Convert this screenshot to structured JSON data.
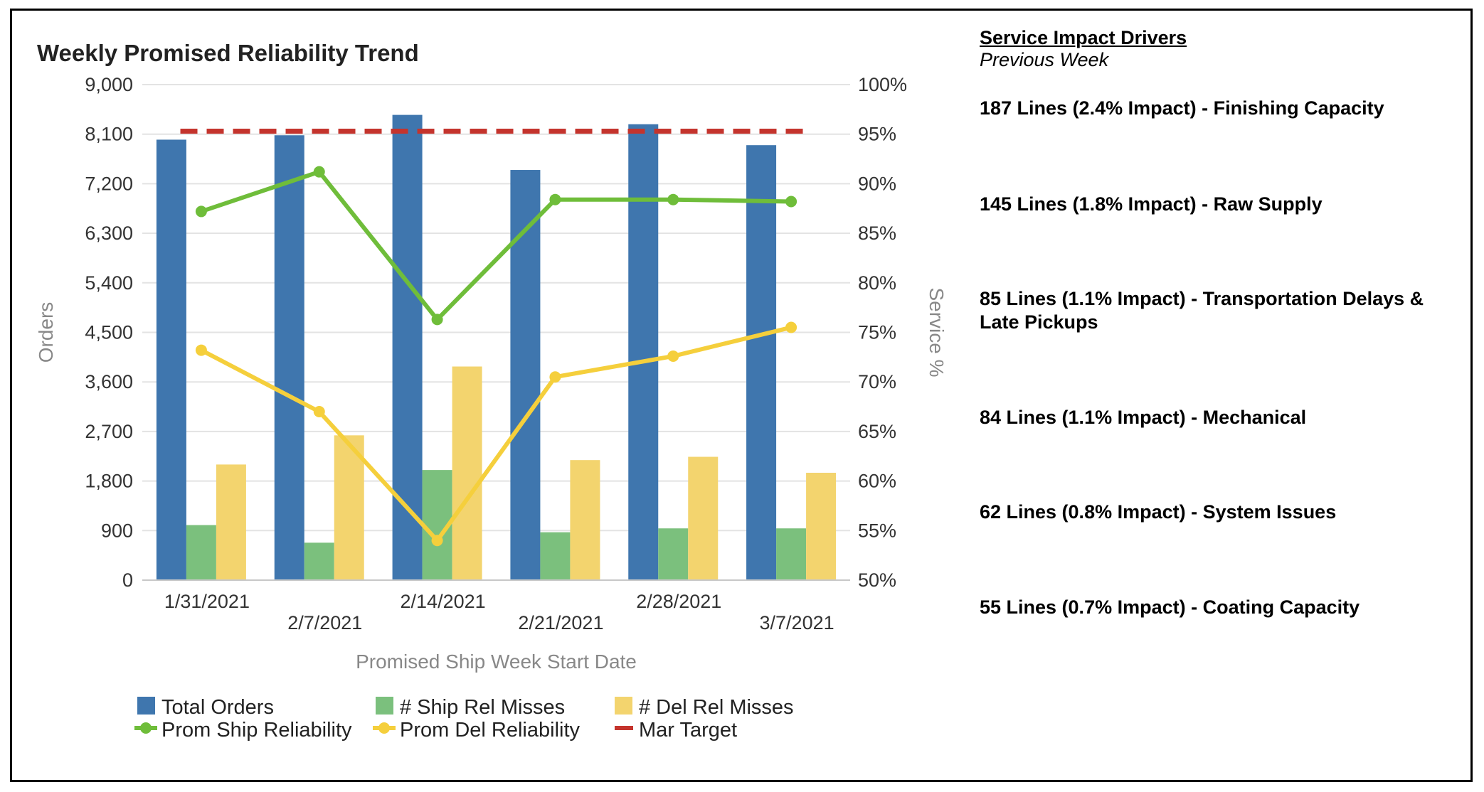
{
  "title": "Weekly Promised Reliability Trend",
  "chart_data": {
    "type": "bar",
    "title": "Weekly Promised Reliability Trend",
    "xlabel": "Promised Ship Week Start Date",
    "ylabel": "Orders",
    "y2label": "Service %",
    "categories": [
      "1/31/2021",
      "2/7/2021",
      "2/14/2021",
      "2/21/2021",
      "2/28/2021",
      "3/7/2021"
    ],
    "ylim": [
      0,
      9000
    ],
    "yticks": [
      "0",
      "900",
      "1,800",
      "2,700",
      "3,600",
      "4,500",
      "5,400",
      "6,300",
      "7,200",
      "8,100",
      "9,000"
    ],
    "y2lim": [
      50,
      100
    ],
    "y2ticks": [
      "50%",
      "55%",
      "60%",
      "65%",
      "70%",
      "75%",
      "80%",
      "85%",
      "90%",
      "95%",
      "100%"
    ],
    "grid": true,
    "legend_position": "bottom",
    "series": [
      {
        "name": "Total Orders",
        "type": "bar",
        "axis": "left",
        "color": "#3f76ae",
        "values": [
          8000,
          8080,
          8450,
          7450,
          8280,
          7900
        ]
      },
      {
        "name": "# Ship Rel Misses",
        "type": "bar",
        "axis": "left",
        "color": "#7bc07d",
        "values": [
          1000,
          680,
          2000,
          870,
          940,
          940
        ]
      },
      {
        "name": "# Del Rel Misses",
        "type": "bar",
        "axis": "left",
        "color": "#f3d46e",
        "values": [
          2100,
          2630,
          3880,
          2180,
          2240,
          1950
        ]
      },
      {
        "name": "Prom Ship Reliability",
        "type": "line",
        "axis": "right",
        "color": "#6fbd3a",
        "values": [
          87.2,
          91.2,
          76.3,
          88.4,
          88.4,
          88.2
        ]
      },
      {
        "name": "Prom Del Reliability",
        "type": "line",
        "axis": "right",
        "color": "#f5cf3c",
        "values": [
          73.2,
          67.0,
          54.0,
          70.5,
          72.6,
          75.5
        ]
      },
      {
        "name": "Mar Target",
        "type": "dashed-line",
        "axis": "right",
        "color": "#c4342d",
        "values": [
          95.3,
          95.3,
          95.3,
          95.3,
          95.3,
          95.3
        ]
      }
    ]
  },
  "drivers": {
    "title": "Service Impact Drivers",
    "subtitle": "Previous Week",
    "items": [
      " 187 Lines (2.4% Impact) - Finishing Capacity",
      "145 Lines (1.8% Impact) - Raw Supply",
      "85 Lines (1.1% Impact) - Transportation Delays & Late Pickups",
      "84 Lines (1.1% Impact) - Mechanical",
      "62 Lines (0.8% Impact) - System Issues",
      "55 Lines (0.7% Impact) - Coating Capacity"
    ]
  }
}
